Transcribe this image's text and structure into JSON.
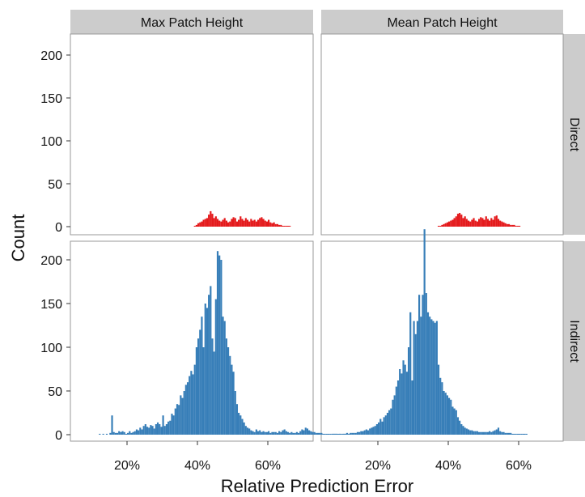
{
  "chart_data": {
    "type": "histogram-facet",
    "xlabel": "Relative Prediction Error",
    "ylabel": "Count",
    "x_ticks": [
      "20%",
      "40%",
      "60%"
    ],
    "x_tick_values": [
      0.2,
      0.4,
      0.6
    ],
    "y_ticks": [
      "0",
      "50",
      "100",
      "150",
      "200"
    ],
    "y_tick_values": [
      0,
      50,
      100,
      150,
      200
    ],
    "xlim": [
      0.05,
      0.73
    ],
    "ylim": [
      -10,
      222
    ],
    "col_labels": [
      "Max Patch Height",
      "Mean Patch Height"
    ],
    "row_labels": [
      "Direct",
      "Indirect"
    ],
    "bin_width": 0.005,
    "colors": {
      "Direct": "#e41a1c",
      "Indirect": "#377eb8",
      "strip_bg": "#cccccc",
      "panel_border": "#999999"
    },
    "panels": [
      {
        "col": "Max Patch Height",
        "row": "Direct",
        "x_start": 0.39,
        "counts": [
          1,
          2,
          4,
          5,
          6,
          8,
          9,
          10,
          14,
          18,
          15,
          10,
          12,
          9,
          7,
          6,
          8,
          10,
          7,
          5,
          6,
          9,
          11,
          10,
          6,
          8,
          12,
          9,
          7,
          10,
          8,
          6,
          9,
          7,
          8,
          6,
          8,
          10,
          11,
          9,
          7,
          6,
          8,
          5,
          4,
          5,
          3,
          3,
          2,
          2,
          1,
          1,
          1,
          1,
          1
        ]
      },
      {
        "col": "Mean Patch Height",
        "row": "Direct",
        "x_start": 0.37,
        "counts": [
          1,
          1,
          2,
          3,
          4,
          5,
          6,
          7,
          8,
          10,
          12,
          15,
          16,
          14,
          10,
          12,
          9,
          7,
          6,
          8,
          10,
          7,
          6,
          9,
          11,
          10,
          8,
          12,
          9,
          7,
          10,
          8,
          12,
          13,
          9,
          7,
          6,
          5,
          4,
          3,
          3,
          2,
          2,
          2,
          1,
          1,
          1
        ]
      },
      {
        "col": "Max Patch Height",
        "row": "Indirect",
        "x_start": 0.12,
        "counts": [
          1,
          0,
          1,
          0,
          1,
          0,
          2,
          22,
          3,
          2,
          2,
          4,
          3,
          4,
          3,
          1,
          2,
          4,
          2,
          3,
          4,
          6,
          5,
          8,
          6,
          10,
          12,
          9,
          8,
          11,
          10,
          7,
          12,
          14,
          12,
          9,
          22,
          10,
          12,
          15,
          16,
          24,
          22,
          30,
          35,
          34,
          45,
          42,
          50,
          57,
          60,
          67,
          73,
          69,
          80,
          100,
          110,
          120,
          135,
          100,
          150,
          145,
          160,
          170,
          110,
          95,
          155,
          210,
          205,
          200,
          135,
          130,
          110,
          100,
          90,
          80,
          72,
          50,
          35,
          25,
          22,
          18,
          14,
          10,
          8,
          7,
          5,
          4,
          3,
          6,
          4,
          5,
          3,
          4,
          3,
          3,
          4,
          2,
          3,
          3,
          3,
          2,
          4,
          3,
          5,
          6,
          4,
          3,
          2,
          3,
          2,
          2,
          3,
          2,
          4,
          6,
          5,
          8,
          7,
          5,
          4,
          3,
          3,
          2,
          2,
          2,
          2,
          1,
          1,
          1,
          1,
          1,
          1,
          1,
          1,
          1,
          1,
          1,
          1,
          1,
          1,
          1,
          1
        ]
      },
      {
        "col": "Mean Patch Height",
        "row": "Indirect",
        "x_start": 0.07,
        "counts": [
          1,
          1,
          1,
          0,
          1,
          0,
          1,
          1,
          2,
          1,
          2,
          2,
          2,
          2,
          3,
          3,
          4,
          4,
          5,
          6,
          5,
          7,
          8,
          9,
          10,
          12,
          14,
          18,
          15,
          20,
          22,
          25,
          28,
          30,
          40,
          45,
          55,
          62,
          75,
          70,
          85,
          80,
          72,
          100,
          140,
          62,
          130,
          115,
          130,
          160,
          135,
          160,
          235,
          162,
          140,
          135,
          132,
          130,
          128,
          130,
          80,
          65,
          60,
          50,
          48,
          45,
          42,
          40,
          32,
          30,
          28,
          20,
          16,
          12,
          10,
          8,
          7,
          6,
          5,
          5,
          4,
          4,
          4,
          3,
          3,
          3,
          3,
          3,
          3,
          4,
          3,
          4,
          5,
          6,
          8,
          4,
          3,
          3,
          2,
          2,
          2,
          2,
          1,
          1,
          1,
          1,
          1,
          1,
          1,
          1,
          1
        ]
      }
    ]
  }
}
